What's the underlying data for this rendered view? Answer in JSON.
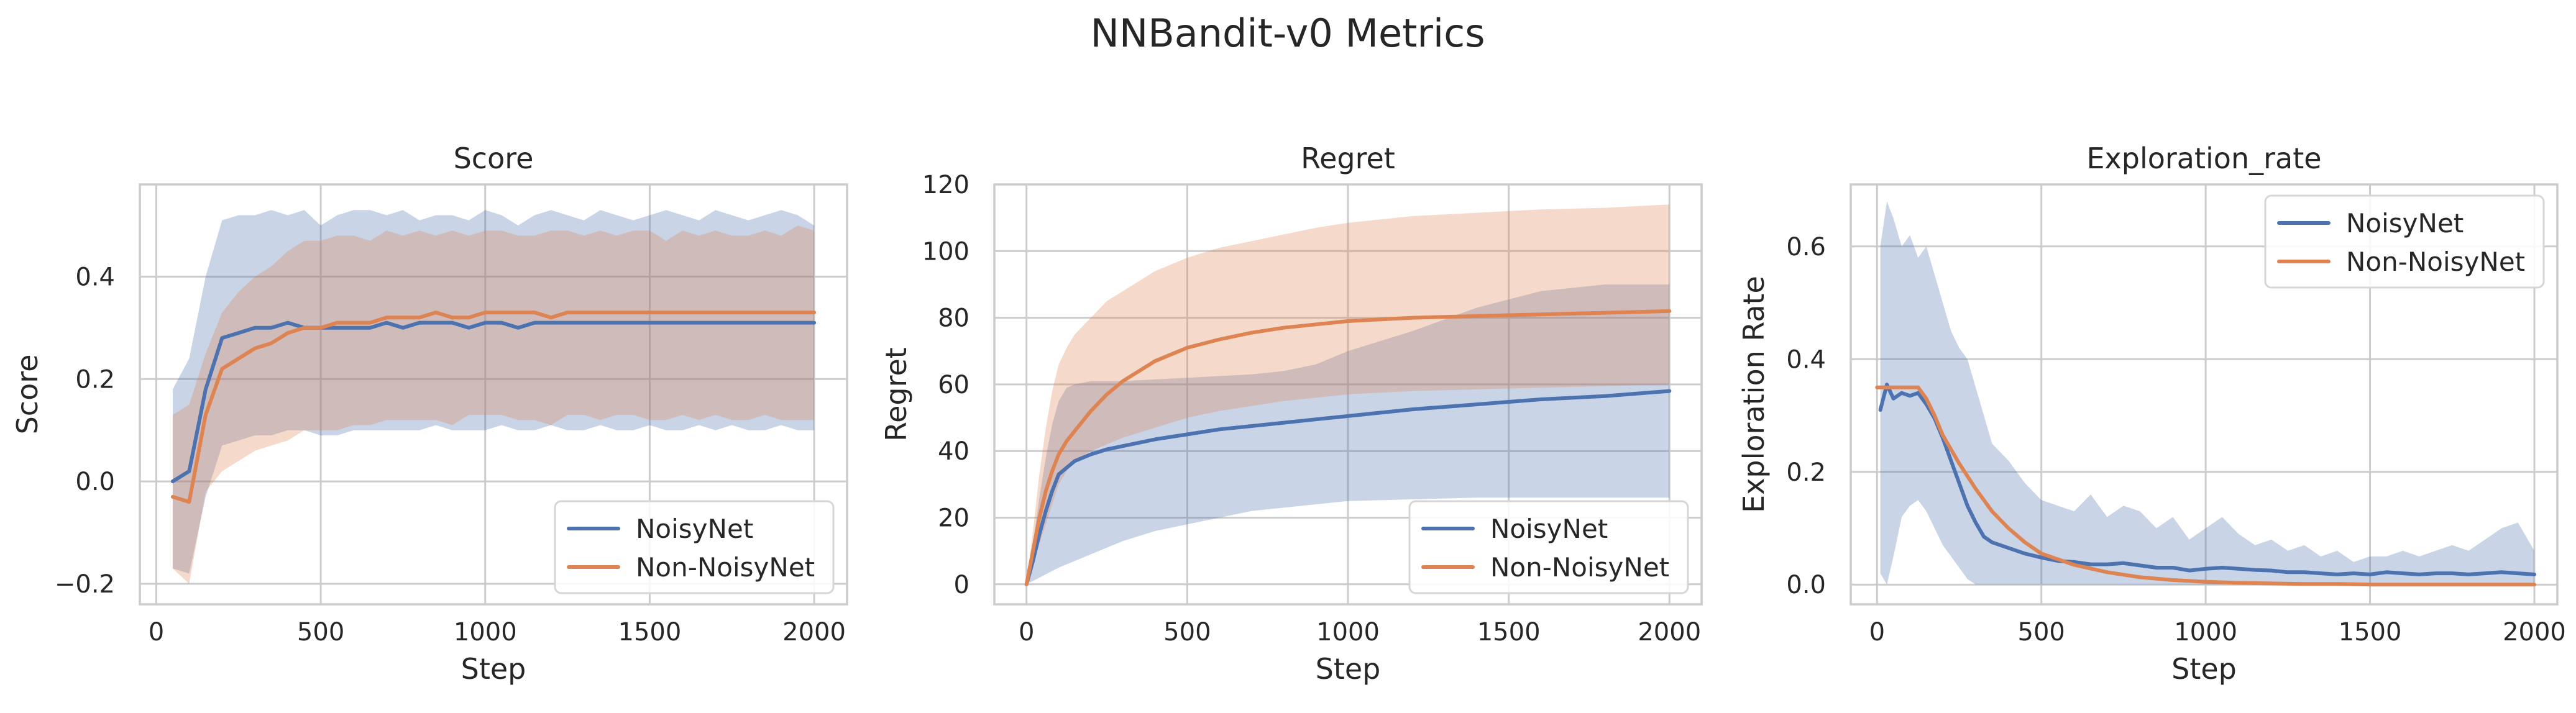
{
  "figure": {
    "suptitle": "NNBandit-v0 Metrics"
  },
  "colors": {
    "NoisyNet": "#4c72b0",
    "Non-NoisyNet": "#dd8452",
    "grid": "#cccccc",
    "text": "#262626"
  },
  "chart_data": [
    {
      "type": "line",
      "title": "Score",
      "xlabel": "Step",
      "ylabel": "Score",
      "xlim": [
        -50,
        2100
      ],
      "ylim": [
        -0.24,
        0.58
      ],
      "xticks": [
        0,
        500,
        1000,
        1500,
        2000
      ],
      "yticks": [
        -0.2,
        0.0,
        0.2,
        0.4
      ],
      "yticklabels": [
        "−0.2",
        "0.0",
        "0.2",
        "0.4"
      ],
      "grid": true,
      "legend": {
        "position": "lower-right",
        "entries": [
          "NoisyNet",
          "Non-NoisyNet"
        ]
      },
      "series": [
        {
          "name": "NoisyNet",
          "x": [
            50,
            100,
            150,
            200,
            250,
            300,
            350,
            400,
            450,
            500,
            550,
            600,
            650,
            700,
            750,
            800,
            850,
            900,
            950,
            1000,
            1050,
            1100,
            1150,
            1200,
            1250,
            1300,
            1350,
            1400,
            1450,
            1500,
            1550,
            1600,
            1650,
            1700,
            1750,
            1800,
            1850,
            1900,
            1950,
            2000
          ],
          "y": [
            0.0,
            0.02,
            0.18,
            0.28,
            0.29,
            0.3,
            0.3,
            0.31,
            0.3,
            0.3,
            0.3,
            0.3,
            0.3,
            0.31,
            0.3,
            0.31,
            0.31,
            0.31,
            0.3,
            0.31,
            0.31,
            0.3,
            0.31,
            0.31,
            0.31,
            0.31,
            0.31,
            0.31,
            0.31,
            0.31,
            0.31,
            0.31,
            0.31,
            0.31,
            0.31,
            0.31,
            0.31,
            0.31,
            0.31,
            0.31
          ],
          "upper": [
            0.18,
            0.24,
            0.4,
            0.51,
            0.52,
            0.52,
            0.53,
            0.52,
            0.53,
            0.5,
            0.52,
            0.53,
            0.53,
            0.52,
            0.53,
            0.51,
            0.52,
            0.52,
            0.51,
            0.53,
            0.52,
            0.5,
            0.52,
            0.53,
            0.52,
            0.51,
            0.53,
            0.52,
            0.51,
            0.52,
            0.53,
            0.52,
            0.51,
            0.53,
            0.52,
            0.51,
            0.52,
            0.53,
            0.52,
            0.5
          ],
          "lower": [
            -0.17,
            -0.18,
            -0.03,
            0.07,
            0.08,
            0.09,
            0.09,
            0.1,
            0.1,
            0.09,
            0.09,
            0.1,
            0.1,
            0.1,
            0.1,
            0.1,
            0.11,
            0.1,
            0.1,
            0.1,
            0.11,
            0.1,
            0.1,
            0.11,
            0.1,
            0.1,
            0.11,
            0.1,
            0.1,
            0.11,
            0.1,
            0.1,
            0.11,
            0.1,
            0.11,
            0.1,
            0.1,
            0.11,
            0.1,
            0.1
          ]
        },
        {
          "name": "Non-NoisyNet",
          "x": [
            50,
            100,
            150,
            200,
            250,
            300,
            350,
            400,
            450,
            500,
            550,
            600,
            650,
            700,
            750,
            800,
            850,
            900,
            950,
            1000,
            1050,
            1100,
            1150,
            1200,
            1250,
            1300,
            1350,
            1400,
            1450,
            1500,
            1550,
            1600,
            1650,
            1700,
            1750,
            1800,
            1850,
            1900,
            1950,
            2000
          ],
          "y": [
            -0.03,
            -0.04,
            0.13,
            0.22,
            0.24,
            0.26,
            0.27,
            0.29,
            0.3,
            0.3,
            0.31,
            0.31,
            0.31,
            0.32,
            0.32,
            0.32,
            0.33,
            0.32,
            0.32,
            0.33,
            0.33,
            0.33,
            0.33,
            0.32,
            0.33,
            0.33,
            0.33,
            0.33,
            0.33,
            0.33,
            0.33,
            0.33,
            0.33,
            0.33,
            0.33,
            0.33,
            0.33,
            0.33,
            0.33,
            0.33
          ],
          "upper": [
            0.13,
            0.15,
            0.25,
            0.33,
            0.37,
            0.4,
            0.42,
            0.45,
            0.47,
            0.47,
            0.48,
            0.48,
            0.47,
            0.49,
            0.48,
            0.49,
            0.48,
            0.49,
            0.48,
            0.49,
            0.49,
            0.48,
            0.48,
            0.49,
            0.49,
            0.48,
            0.49,
            0.48,
            0.49,
            0.49,
            0.47,
            0.49,
            0.48,
            0.49,
            0.48,
            0.48,
            0.49,
            0.48,
            0.5,
            0.49
          ],
          "lower": [
            -0.17,
            -0.2,
            -0.02,
            0.02,
            0.04,
            0.06,
            0.07,
            0.08,
            0.1,
            0.1,
            0.1,
            0.11,
            0.11,
            0.12,
            0.12,
            0.12,
            0.12,
            0.11,
            0.13,
            0.13,
            0.13,
            0.12,
            0.12,
            0.11,
            0.13,
            0.13,
            0.12,
            0.13,
            0.13,
            0.12,
            0.12,
            0.13,
            0.12,
            0.13,
            0.12,
            0.12,
            0.13,
            0.12,
            0.12,
            0.12
          ]
        }
      ]
    },
    {
      "type": "line",
      "title": "Regret",
      "xlabel": "Step",
      "ylabel": "Regret",
      "xlim": [
        -100,
        2100
      ],
      "ylim": [
        -6,
        120
      ],
      "xticks": [
        0,
        500,
        1000,
        1500,
        2000
      ],
      "yticks": [
        0,
        20,
        40,
        60,
        80,
        100,
        120
      ],
      "yticklabels": [
        "0",
        "20",
        "40",
        "60",
        "80",
        "100",
        "120"
      ],
      "grid": true,
      "legend": {
        "position": "lower-right",
        "entries": [
          "NoisyNet",
          "Non-NoisyNet"
        ]
      },
      "series": [
        {
          "name": "NoisyNet",
          "x": [
            0,
            20,
            40,
            60,
            80,
            100,
            125,
            150,
            200,
            250,
            300,
            400,
            500,
            600,
            700,
            800,
            900,
            1000,
            1200,
            1400,
            1600,
            1800,
            2000
          ],
          "y": [
            0,
            7,
            15,
            22,
            28,
            33,
            35,
            37,
            39,
            40.5,
            41.5,
            43.5,
            45,
            46.5,
            47.5,
            48.5,
            49.5,
            50.5,
            52.5,
            54,
            55.5,
            56.5,
            58
          ],
          "upper": [
            0,
            12,
            26,
            38,
            48,
            55,
            59,
            60,
            61,
            61,
            61,
            61.5,
            62,
            62.5,
            63,
            64,
            66,
            70,
            76,
            83,
            88,
            90,
            90
          ],
          "lower": [
            0,
            1,
            2,
            3,
            4,
            5,
            6,
            7,
            9,
            11,
            13,
            16,
            18,
            20,
            22,
            23,
            24,
            25,
            25.5,
            26,
            26,
            26,
            26
          ]
        },
        {
          "name": "Non-NoisyNet",
          "x": [
            0,
            20,
            40,
            60,
            80,
            100,
            125,
            150,
            200,
            250,
            300,
            400,
            500,
            600,
            700,
            800,
            900,
            1000,
            1200,
            1400,
            1600,
            1800,
            2000
          ],
          "y": [
            0,
            10,
            20,
            28,
            34,
            39,
            43,
            46,
            52,
            57,
            61,
            67,
            71,
            73.5,
            75.5,
            77,
            78,
            79,
            80,
            80.5,
            81,
            81.5,
            82
          ],
          "upper": [
            0,
            16,
            33,
            47,
            58,
            66,
            71,
            75,
            80,
            85,
            88,
            94,
            98,
            101,
            103,
            105,
            107,
            108.5,
            110.5,
            111.5,
            112.5,
            113,
            114
          ],
          "lower": [
            0,
            6,
            12,
            18,
            24,
            30,
            34,
            37,
            40,
            42,
            44,
            47,
            50,
            52,
            53.5,
            55,
            56,
            57,
            58,
            58.5,
            59,
            59.5,
            60
          ]
        }
      ]
    },
    {
      "type": "line",
      "title": "Exploration_rate",
      "xlabel": "Step",
      "ylabel": "Exploration Rate",
      "xlim": [
        -80,
        2070
      ],
      "ylim": [
        -0.035,
        0.71
      ],
      "xticks": [
        0,
        500,
        1000,
        1500,
        2000
      ],
      "yticks": [
        0.0,
        0.2,
        0.4,
        0.6
      ],
      "yticklabels": [
        "0.0",
        "0.2",
        "0.4",
        "0.6"
      ],
      "grid": true,
      "legend": {
        "position": "top-right",
        "entries": [
          "NoisyNet",
          "Non-NoisyNet"
        ]
      },
      "series": [
        {
          "name": "NoisyNet",
          "x": [
            10,
            30,
            50,
            75,
            100,
            125,
            150,
            175,
            200,
            225,
            250,
            275,
            300,
            325,
            350,
            400,
            450,
            500,
            550,
            600,
            650,
            700,
            750,
            800,
            850,
            900,
            950,
            1000,
            1050,
            1100,
            1150,
            1200,
            1250,
            1300,
            1350,
            1400,
            1450,
            1500,
            1550,
            1600,
            1650,
            1700,
            1750,
            1800,
            1850,
            1900,
            1950,
            2000
          ],
          "y": [
            0.31,
            0.355,
            0.33,
            0.34,
            0.335,
            0.34,
            0.32,
            0.295,
            0.26,
            0.22,
            0.18,
            0.14,
            0.11,
            0.085,
            0.075,
            0.065,
            0.055,
            0.048,
            0.042,
            0.04,
            0.036,
            0.036,
            0.038,
            0.034,
            0.03,
            0.03,
            0.025,
            0.028,
            0.03,
            0.028,
            0.026,
            0.025,
            0.022,
            0.022,
            0.02,
            0.018,
            0.02,
            0.018,
            0.022,
            0.02,
            0.018,
            0.02,
            0.02,
            0.018,
            0.02,
            0.022,
            0.02,
            0.018
          ],
          "upper": [
            0.6,
            0.68,
            0.65,
            0.6,
            0.62,
            0.58,
            0.6,
            0.55,
            0.5,
            0.45,
            0.42,
            0.4,
            0.35,
            0.3,
            0.25,
            0.22,
            0.18,
            0.15,
            0.14,
            0.13,
            0.16,
            0.12,
            0.14,
            0.13,
            0.1,
            0.12,
            0.08,
            0.1,
            0.12,
            0.09,
            0.07,
            0.08,
            0.06,
            0.07,
            0.05,
            0.06,
            0.04,
            0.05,
            0.05,
            0.06,
            0.05,
            0.06,
            0.07,
            0.06,
            0.08,
            0.1,
            0.11,
            0.06
          ],
          "lower": [
            0.02,
            0.0,
            0.05,
            0.12,
            0.14,
            0.15,
            0.13,
            0.1,
            0.07,
            0.05,
            0.03,
            0.01,
            0.0,
            0.0,
            0.0,
            0.0,
            0.0,
            0.0,
            0.0,
            0.0,
            0.0,
            0.0,
            0.0,
            0.0,
            0.0,
            0.0,
            0.0,
            0.0,
            0.0,
            0.0,
            0.0,
            0.0,
            0.0,
            0.0,
            0.0,
            0.0,
            0.0,
            0.0,
            0.0,
            0.0,
            0.0,
            0.0,
            0.0,
            0.0,
            0.0,
            0.0,
            0.0,
            0.0
          ]
        },
        {
          "name": "Non-NoisyNet",
          "x": [
            0,
            50,
            100,
            125,
            150,
            175,
            200,
            250,
            300,
            350,
            400,
            450,
            500,
            600,
            700,
            800,
            900,
            1000,
            1100,
            1200,
            1300,
            1400,
            1500,
            1600,
            1700,
            1800,
            1900,
            2000
          ],
          "y": [
            0.35,
            0.35,
            0.35,
            0.35,
            0.33,
            0.3,
            0.265,
            0.215,
            0.17,
            0.13,
            0.1,
            0.075,
            0.055,
            0.035,
            0.022,
            0.013,
            0.008,
            0.005,
            0.003,
            0.002,
            0.001,
            0.001,
            0.0,
            0.0,
            0.0,
            0.0,
            0.0,
            0.0
          ],
          "upper": [
            0.35,
            0.35,
            0.35,
            0.35,
            0.33,
            0.3,
            0.265,
            0.215,
            0.17,
            0.13,
            0.1,
            0.075,
            0.055,
            0.035,
            0.022,
            0.013,
            0.008,
            0.005,
            0.003,
            0.002,
            0.001,
            0.001,
            0.0,
            0.0,
            0.0,
            0.0,
            0.0,
            0.0
          ],
          "lower": [
            0.35,
            0.35,
            0.35,
            0.35,
            0.33,
            0.3,
            0.265,
            0.215,
            0.17,
            0.13,
            0.1,
            0.075,
            0.055,
            0.035,
            0.022,
            0.013,
            0.008,
            0.005,
            0.003,
            0.002,
            0.001,
            0.001,
            0.0,
            0.0,
            0.0,
            0.0,
            0.0,
            0.0
          ]
        }
      ]
    }
  ]
}
